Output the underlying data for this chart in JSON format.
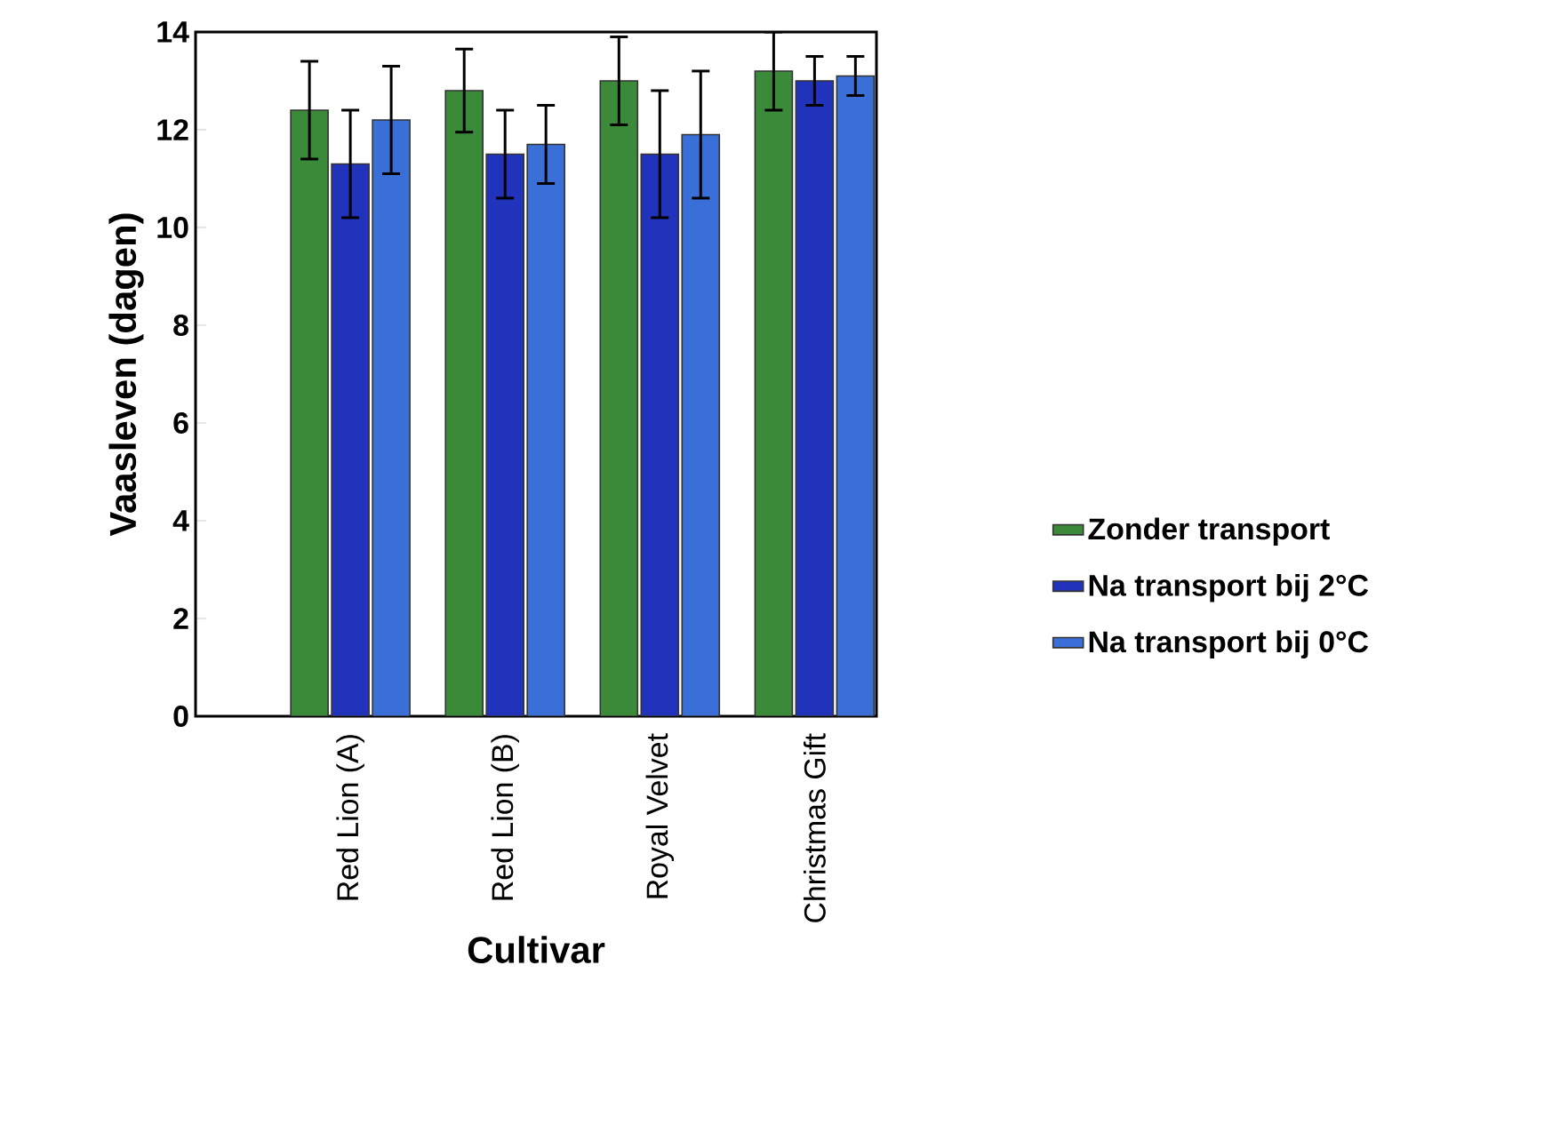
{
  "chart_data": {
    "type": "bar",
    "xlabel": "Cultivar",
    "ylabel": "Vaasleven (dagen)",
    "categories": [
      "Red Lion (A)",
      "Red Lion (B)",
      "Royal Velvet",
      "Christmas Gift"
    ],
    "series": [
      {
        "name": "Zonder transport",
        "color": "#3a8a3a",
        "values": [
          12.4,
          12.8,
          13.0,
          13.2
        ],
        "errors": [
          1.0,
          0.85,
          0.9,
          0.8
        ]
      },
      {
        "name": "Na transport bij 2°C",
        "color": "#2233bb",
        "values": [
          11.3,
          11.5,
          11.5,
          13.0
        ],
        "errors": [
          1.1,
          0.9,
          1.3,
          0.5
        ]
      },
      {
        "name": "Na transport bij 0°C",
        "color": "#3a6fd8",
        "values": [
          12.2,
          11.7,
          11.9,
          13.1
        ],
        "errors": [
          1.1,
          0.8,
          1.3,
          0.4
        ]
      }
    ],
    "ylim": [
      0,
      14
    ],
    "yticks": [
      0,
      2,
      4,
      6,
      8,
      10,
      12,
      14
    ],
    "legend": "right",
    "grid": false
  }
}
